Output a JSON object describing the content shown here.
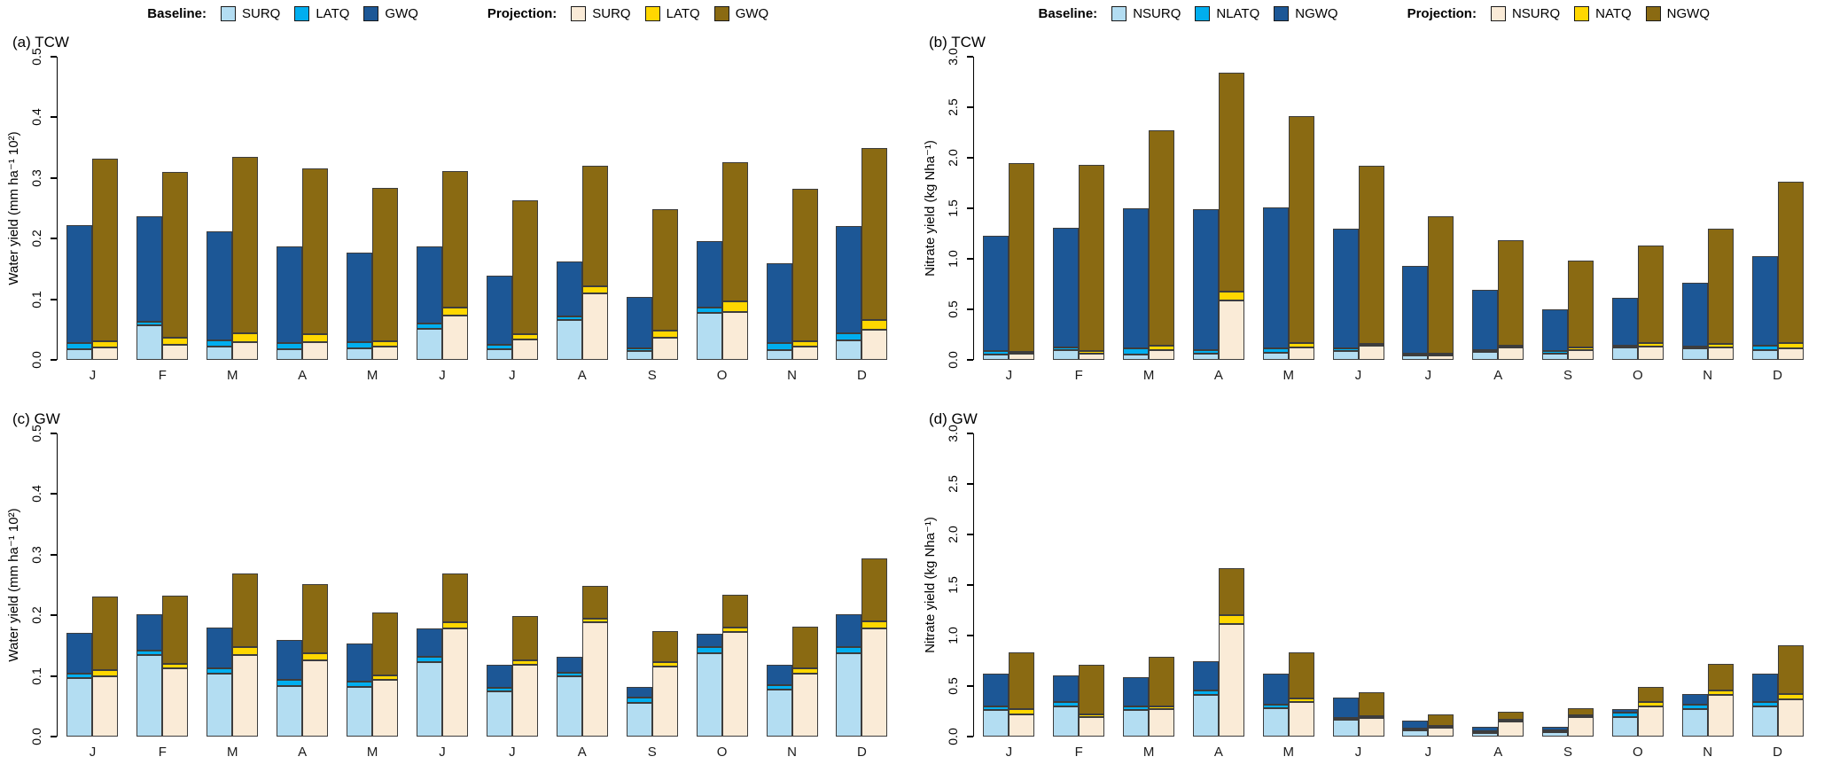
{
  "legends": [
    {
      "baseline_label": "Baseline:",
      "projection_label": "Projection:",
      "baseline_items": [
        {
          "label": "SURQ",
          "color": "#B3DDF2"
        },
        {
          "label": "LATQ",
          "color": "#00AEEF"
        },
        {
          "label": "GWQ",
          "color": "#1C5796"
        }
      ],
      "projection_items": [
        {
          "label": "SURQ",
          "color": "#FAEBD7"
        },
        {
          "label": "LATQ",
          "color": "#FFD700"
        },
        {
          "label": "GWQ",
          "color": "#8A6A12"
        }
      ]
    },
    {
      "baseline_label": "Baseline:",
      "projection_label": "Projection:",
      "baseline_items": [
        {
          "label": "NSURQ",
          "color": "#B3DDF2"
        },
        {
          "label": "NLATQ",
          "color": "#00AEEF"
        },
        {
          "label": "NGWQ",
          "color": "#1C5796"
        }
      ],
      "projection_items": [
        {
          "label": "NSURQ",
          "color": "#FAEBD7"
        },
        {
          "label": "NATQ",
          "color": "#FFD700"
        },
        {
          "label": "NGWQ",
          "color": "#8A6A12"
        }
      ]
    }
  ],
  "chart_data": [
    {
      "type": "bar",
      "title": "(a) TCW",
      "ylabel": "Water yield (mm ha⁻¹ 10²)",
      "ylim": [
        0,
        0.5
      ],
      "yticks": [
        0.0,
        0.1,
        0.2,
        0.3,
        0.4,
        0.5
      ],
      "categories": [
        "J",
        "F",
        "M",
        "A",
        "M",
        "J",
        "J",
        "A",
        "S",
        "O",
        "N",
        "D"
      ],
      "stacks": [
        "baseline",
        "projection"
      ],
      "series": [
        {
          "name": "SURQ",
          "group": "baseline",
          "color": "#B3DDF2",
          "values": [
            0.018,
            0.057,
            0.022,
            0.018,
            0.019,
            0.051,
            0.018,
            0.066,
            0.015,
            0.078,
            0.016,
            0.032
          ]
        },
        {
          "name": "LATQ",
          "group": "baseline",
          "color": "#00AEEF",
          "values": [
            0.01,
            0.006,
            0.01,
            0.01,
            0.01,
            0.009,
            0.007,
            0.005,
            0.004,
            0.009,
            0.012,
            0.012
          ]
        },
        {
          "name": "GWQ",
          "group": "baseline",
          "color": "#1C5796",
          "values": [
            0.194,
            0.174,
            0.18,
            0.159,
            0.148,
            0.127,
            0.114,
            0.091,
            0.085,
            0.109,
            0.132,
            0.177
          ]
        },
        {
          "name": "SURQ",
          "group": "projection",
          "color": "#FAEBD7",
          "values": [
            0.021,
            0.025,
            0.029,
            0.029,
            0.022,
            0.073,
            0.034,
            0.109,
            0.037,
            0.079,
            0.022,
            0.05
          ]
        },
        {
          "name": "LATQ",
          "group": "projection",
          "color": "#FFD700",
          "values": [
            0.01,
            0.012,
            0.015,
            0.013,
            0.009,
            0.014,
            0.008,
            0.012,
            0.012,
            0.017,
            0.009,
            0.016
          ]
        },
        {
          "name": "GWQ",
          "group": "projection",
          "color": "#8A6A12",
          "values": [
            0.301,
            0.273,
            0.291,
            0.274,
            0.253,
            0.224,
            0.221,
            0.199,
            0.199,
            0.23,
            0.251,
            0.284
          ]
        }
      ]
    },
    {
      "type": "bar",
      "title": "(b) TCW",
      "ylabel": "Nitrate yield (kg Nha⁻¹)",
      "ylim": [
        0,
        3.0
      ],
      "yticks": [
        0.0,
        0.5,
        1.0,
        1.5,
        2.0,
        2.5,
        3.0
      ],
      "categories": [
        "J",
        "F",
        "M",
        "A",
        "M",
        "J",
        "J",
        "A",
        "S",
        "O",
        "N",
        "D"
      ],
      "stacks": [
        "baseline",
        "projection"
      ],
      "series": [
        {
          "name": "NSURQ",
          "group": "baseline",
          "color": "#B3DDF2",
          "values": [
            0.05,
            0.1,
            0.05,
            0.06,
            0.07,
            0.09,
            0.04,
            0.08,
            0.06,
            0.12,
            0.11,
            0.1
          ]
        },
        {
          "name": "NLATQ",
          "group": "baseline",
          "color": "#00AEEF",
          "values": [
            0.04,
            0.02,
            0.06,
            0.04,
            0.04,
            0.02,
            0.01,
            0.01,
            0.03,
            0.02,
            0.02,
            0.04
          ]
        },
        {
          "name": "NGWQ",
          "group": "baseline",
          "color": "#1C5796",
          "values": [
            1.14,
            1.19,
            1.39,
            1.39,
            1.4,
            1.19,
            0.87,
            0.6,
            0.41,
            0.47,
            0.63,
            0.89
          ]
        },
        {
          "name": "NSURQ",
          "group": "projection",
          "color": "#FAEBD7",
          "values": [
            0.06,
            0.06,
            0.1,
            0.59,
            0.12,
            0.14,
            0.04,
            0.12,
            0.1,
            0.13,
            0.12,
            0.11
          ]
        },
        {
          "name": "NATQ",
          "group": "projection",
          "color": "#FFD700",
          "values": [
            0.02,
            0.03,
            0.04,
            0.09,
            0.05,
            0.01,
            0.01,
            0.01,
            0.02,
            0.04,
            0.04,
            0.06
          ]
        },
        {
          "name": "NGWQ",
          "group": "projection",
          "color": "#8A6A12",
          "values": [
            1.87,
            1.84,
            2.13,
            2.16,
            2.24,
            1.76,
            1.36,
            1.05,
            0.86,
            0.96,
            1.14,
            1.59
          ]
        }
      ]
    },
    {
      "type": "bar",
      "title": "(c) GW",
      "ylabel": "Water yield (mm ha⁻¹ 10²)",
      "ylim": [
        0,
        0.5
      ],
      "yticks": [
        0.0,
        0.1,
        0.2,
        0.3,
        0.4,
        0.5
      ],
      "categories": [
        "J",
        "F",
        "M",
        "A",
        "M",
        "J",
        "J",
        "A",
        "S",
        "O",
        "N",
        "D"
      ],
      "stacks": [
        "baseline",
        "projection"
      ],
      "series": [
        {
          "name": "SURQ",
          "group": "baseline",
          "color": "#B3DDF2",
          "values": [
            0.096,
            0.135,
            0.104,
            0.084,
            0.082,
            0.123,
            0.074,
            0.099,
            0.056,
            0.137,
            0.077,
            0.137
          ]
        },
        {
          "name": "LATQ",
          "group": "baseline",
          "color": "#00AEEF",
          "values": [
            0.008,
            0.007,
            0.009,
            0.009,
            0.009,
            0.009,
            0.007,
            0.007,
            0.009,
            0.011,
            0.008,
            0.01
          ]
        },
        {
          "name": "GWQ",
          "group": "baseline",
          "color": "#1C5796",
          "values": [
            0.067,
            0.06,
            0.067,
            0.067,
            0.062,
            0.047,
            0.038,
            0.026,
            0.017,
            0.021,
            0.034,
            0.055
          ]
        },
        {
          "name": "SURQ",
          "group": "projection",
          "color": "#FAEBD7",
          "values": [
            0.1,
            0.112,
            0.135,
            0.126,
            0.093,
            0.179,
            0.119,
            0.188,
            0.116,
            0.173,
            0.104,
            0.179
          ]
        },
        {
          "name": "LATQ",
          "group": "projection",
          "color": "#FFD700",
          "values": [
            0.009,
            0.008,
            0.013,
            0.012,
            0.008,
            0.009,
            0.007,
            0.007,
            0.007,
            0.007,
            0.009,
            0.011
          ]
        },
        {
          "name": "GWQ",
          "group": "projection",
          "color": "#8A6A12",
          "values": [
            0.122,
            0.113,
            0.121,
            0.114,
            0.103,
            0.081,
            0.073,
            0.054,
            0.051,
            0.054,
            0.069,
            0.104
          ]
        }
      ]
    },
    {
      "type": "bar",
      "title": "(d) GW",
      "ylabel": "Nitrate yield (kg Nha⁻¹)",
      "ylim": [
        0,
        3.0
      ],
      "yticks": [
        0.0,
        0.5,
        1.0,
        1.5,
        2.0,
        2.5,
        3.0
      ],
      "categories": [
        "J",
        "F",
        "M",
        "A",
        "M",
        "J",
        "J",
        "A",
        "S",
        "O",
        "N",
        "D"
      ],
      "stacks": [
        "baseline",
        "projection"
      ],
      "series": [
        {
          "name": "NSURQ",
          "group": "baseline",
          "color": "#B3DDF2",
          "values": [
            0.26,
            0.3,
            0.26,
            0.41,
            0.28,
            0.17,
            0.06,
            0.035,
            0.04,
            0.19,
            0.27,
            0.3
          ]
        },
        {
          "name": "NLATQ",
          "group": "baseline",
          "color": "#00AEEF",
          "values": [
            0.04,
            0.04,
            0.04,
            0.05,
            0.04,
            0.01,
            0.01,
            0.005,
            0.01,
            0.045,
            0.045,
            0.04
          ]
        },
        {
          "name": "NGWQ",
          "group": "baseline",
          "color": "#1C5796",
          "values": [
            0.32,
            0.27,
            0.29,
            0.29,
            0.3,
            0.2,
            0.08,
            0.047,
            0.037,
            0.035,
            0.105,
            0.28
          ]
        },
        {
          "name": "NSURQ",
          "group": "projection",
          "color": "#FAEBD7",
          "values": [
            0.22,
            0.19,
            0.27,
            1.11,
            0.34,
            0.18,
            0.09,
            0.15,
            0.19,
            0.3,
            0.41,
            0.37
          ]
        },
        {
          "name": "NATQ",
          "group": "projection",
          "color": "#FFD700",
          "values": [
            0.05,
            0.03,
            0.03,
            0.09,
            0.04,
            0.01,
            0.01,
            0.01,
            0.01,
            0.04,
            0.05,
            0.05
          ]
        },
        {
          "name": "NGWQ",
          "group": "projection",
          "color": "#8A6A12",
          "values": [
            0.56,
            0.49,
            0.49,
            0.47,
            0.45,
            0.24,
            0.11,
            0.08,
            0.07,
            0.15,
            0.26,
            0.48
          ]
        }
      ]
    }
  ]
}
